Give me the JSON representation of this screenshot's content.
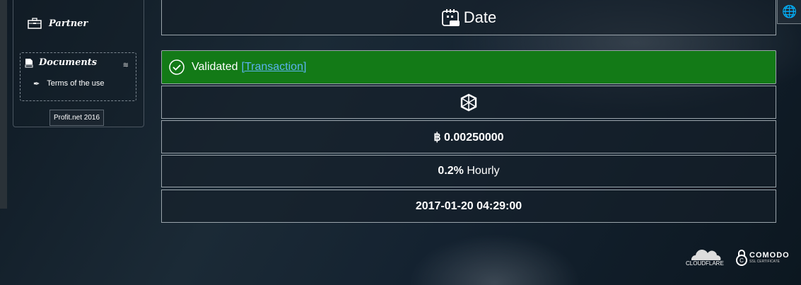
{
  "sidebar": {
    "partner_label": "Partner",
    "documents_label": "Documents",
    "terms_label": "Terms of the use",
    "copyright": "Profit.net 2016"
  },
  "header": {
    "title": "Date"
  },
  "status": {
    "text": "Validated",
    "link": "[Transaction]",
    "color": "#137a17",
    "link_color": "#5cb3f0"
  },
  "details": {
    "amount": "฿ 0.00250000",
    "rate_value": "0.2%",
    "rate_period": "Hourly",
    "datetime": "2017-01-20 04:29:00"
  },
  "footer": {
    "cloudflare": "CLOUDFLARE",
    "comodo": "COMODO",
    "comodo_sub": "SSL CERTIFICATE"
  }
}
